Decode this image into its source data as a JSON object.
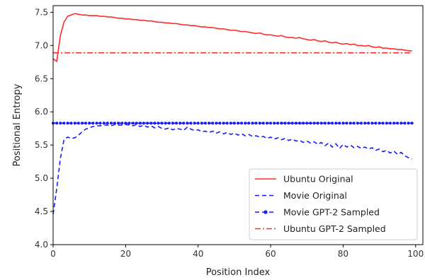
{
  "chart_data": {
    "type": "line",
    "title": "",
    "xlabel": "Position Index",
    "ylabel": "Positional Entropy",
    "xlim": [
      0,
      102
    ],
    "ylim": [
      4.0,
      7.6
    ],
    "xticks": [
      0,
      20,
      40,
      60,
      80,
      100
    ],
    "yticks": [
      4.0,
      4.5,
      5.0,
      5.5,
      6.0,
      6.5,
      7.0,
      7.5
    ],
    "grid": false,
    "legend_position": "lower-right",
    "series": [
      {
        "name": "Ubuntu Original",
        "color": "#ff2a2a",
        "style": "solid",
        "marker": "none",
        "x": [
          0,
          1,
          2,
          3,
          4,
          5,
          6,
          7,
          8,
          9,
          10,
          11,
          12,
          13,
          14,
          15,
          16,
          17,
          18,
          19,
          20,
          21,
          22,
          23,
          24,
          25,
          26,
          27,
          28,
          29,
          30,
          31,
          32,
          33,
          34,
          35,
          36,
          37,
          38,
          39,
          40,
          41,
          42,
          43,
          44,
          45,
          46,
          47,
          48,
          49,
          50,
          51,
          52,
          53,
          54,
          55,
          56,
          57,
          58,
          59,
          60,
          61,
          62,
          63,
          64,
          65,
          66,
          67,
          68,
          69,
          70,
          71,
          72,
          73,
          74,
          75,
          76,
          77,
          78,
          79,
          80,
          81,
          82,
          83,
          84,
          85,
          86,
          87,
          88,
          89,
          90,
          91,
          92,
          93,
          94,
          95,
          96,
          97,
          98,
          99
        ],
        "y": [
          6.8,
          6.76,
          7.15,
          7.35,
          7.44,
          7.46,
          7.48,
          7.47,
          7.46,
          7.46,
          7.45,
          7.45,
          7.45,
          7.44,
          7.44,
          7.43,
          7.43,
          7.42,
          7.41,
          7.41,
          7.4,
          7.4,
          7.39,
          7.39,
          7.38,
          7.38,
          7.37,
          7.37,
          7.36,
          7.35,
          7.35,
          7.34,
          7.34,
          7.33,
          7.33,
          7.32,
          7.31,
          7.31,
          7.3,
          7.3,
          7.29,
          7.28,
          7.28,
          7.27,
          7.27,
          7.26,
          7.25,
          7.25,
          7.24,
          7.23,
          7.23,
          7.22,
          7.21,
          7.21,
          7.2,
          7.19,
          7.18,
          7.19,
          7.17,
          7.16,
          7.16,
          7.15,
          7.14,
          7.15,
          7.13,
          7.12,
          7.12,
          7.11,
          7.12,
          7.1,
          7.09,
          7.08,
          7.09,
          7.07,
          7.06,
          7.07,
          7.05,
          7.04,
          7.05,
          7.03,
          7.02,
          7.03,
          7.01,
          7.02,
          7.0,
          7.0,
          6.99,
          7.0,
          6.98,
          6.97,
          6.98,
          6.96,
          6.96,
          6.95,
          6.95,
          6.94,
          6.94,
          6.93,
          6.92,
          6.92
        ]
      },
      {
        "name": "Movie Original",
        "color": "#1a1aff",
        "style": "dashed",
        "marker": "none",
        "x": [
          0,
          1,
          2,
          3,
          4,
          5,
          6,
          7,
          8,
          9,
          10,
          11,
          12,
          13,
          14,
          15,
          16,
          17,
          18,
          19,
          20,
          21,
          22,
          23,
          24,
          25,
          26,
          27,
          28,
          29,
          30,
          31,
          32,
          33,
          34,
          35,
          36,
          37,
          38,
          39,
          40,
          41,
          42,
          43,
          44,
          45,
          46,
          47,
          48,
          49,
          50,
          51,
          52,
          53,
          54,
          55,
          56,
          57,
          58,
          59,
          60,
          61,
          62,
          63,
          64,
          65,
          66,
          67,
          68,
          69,
          70,
          71,
          72,
          73,
          74,
          75,
          76,
          77,
          78,
          79,
          80,
          81,
          82,
          83,
          84,
          85,
          86,
          87,
          88,
          89,
          90,
          91,
          92,
          93,
          94,
          95,
          96,
          97,
          98,
          99
        ],
        "y": [
          4.46,
          4.85,
          5.3,
          5.58,
          5.62,
          5.6,
          5.61,
          5.65,
          5.7,
          5.74,
          5.76,
          5.78,
          5.79,
          5.79,
          5.8,
          5.8,
          5.79,
          5.81,
          5.8,
          5.8,
          5.81,
          5.8,
          5.79,
          5.81,
          5.78,
          5.8,
          5.77,
          5.79,
          5.76,
          5.78,
          5.75,
          5.74,
          5.76,
          5.73,
          5.75,
          5.74,
          5.72,
          5.77,
          5.74,
          5.72,
          5.73,
          5.7,
          5.71,
          5.69,
          5.71,
          5.68,
          5.7,
          5.67,
          5.69,
          5.66,
          5.68,
          5.65,
          5.67,
          5.64,
          5.66,
          5.63,
          5.64,
          5.62,
          5.63,
          5.6,
          5.62,
          5.59,
          5.61,
          5.58,
          5.6,
          5.57,
          5.59,
          5.56,
          5.57,
          5.54,
          5.56,
          5.53,
          5.55,
          5.51,
          5.54,
          5.49,
          5.53,
          5.47,
          5.52,
          5.45,
          5.51,
          5.47,
          5.5,
          5.46,
          5.48,
          5.45,
          5.47,
          5.44,
          5.46,
          5.42,
          5.44,
          5.4,
          5.42,
          5.38,
          5.41,
          5.36,
          5.39,
          5.34,
          5.31,
          5.29
        ]
      },
      {
        "name": "Movie GPT-2 Sampled",
        "color": "#1a1aff",
        "style": "dashed",
        "marker": "dot",
        "x_range": [
          0,
          99
        ],
        "y_constant": 5.83
      },
      {
        "name": "Ubuntu GPT-2 Sampled",
        "color": "#ff2a2a",
        "style": "dashdot",
        "marker": "none",
        "x_range": [
          0,
          99
        ],
        "y_constant": 6.89
      }
    ]
  }
}
